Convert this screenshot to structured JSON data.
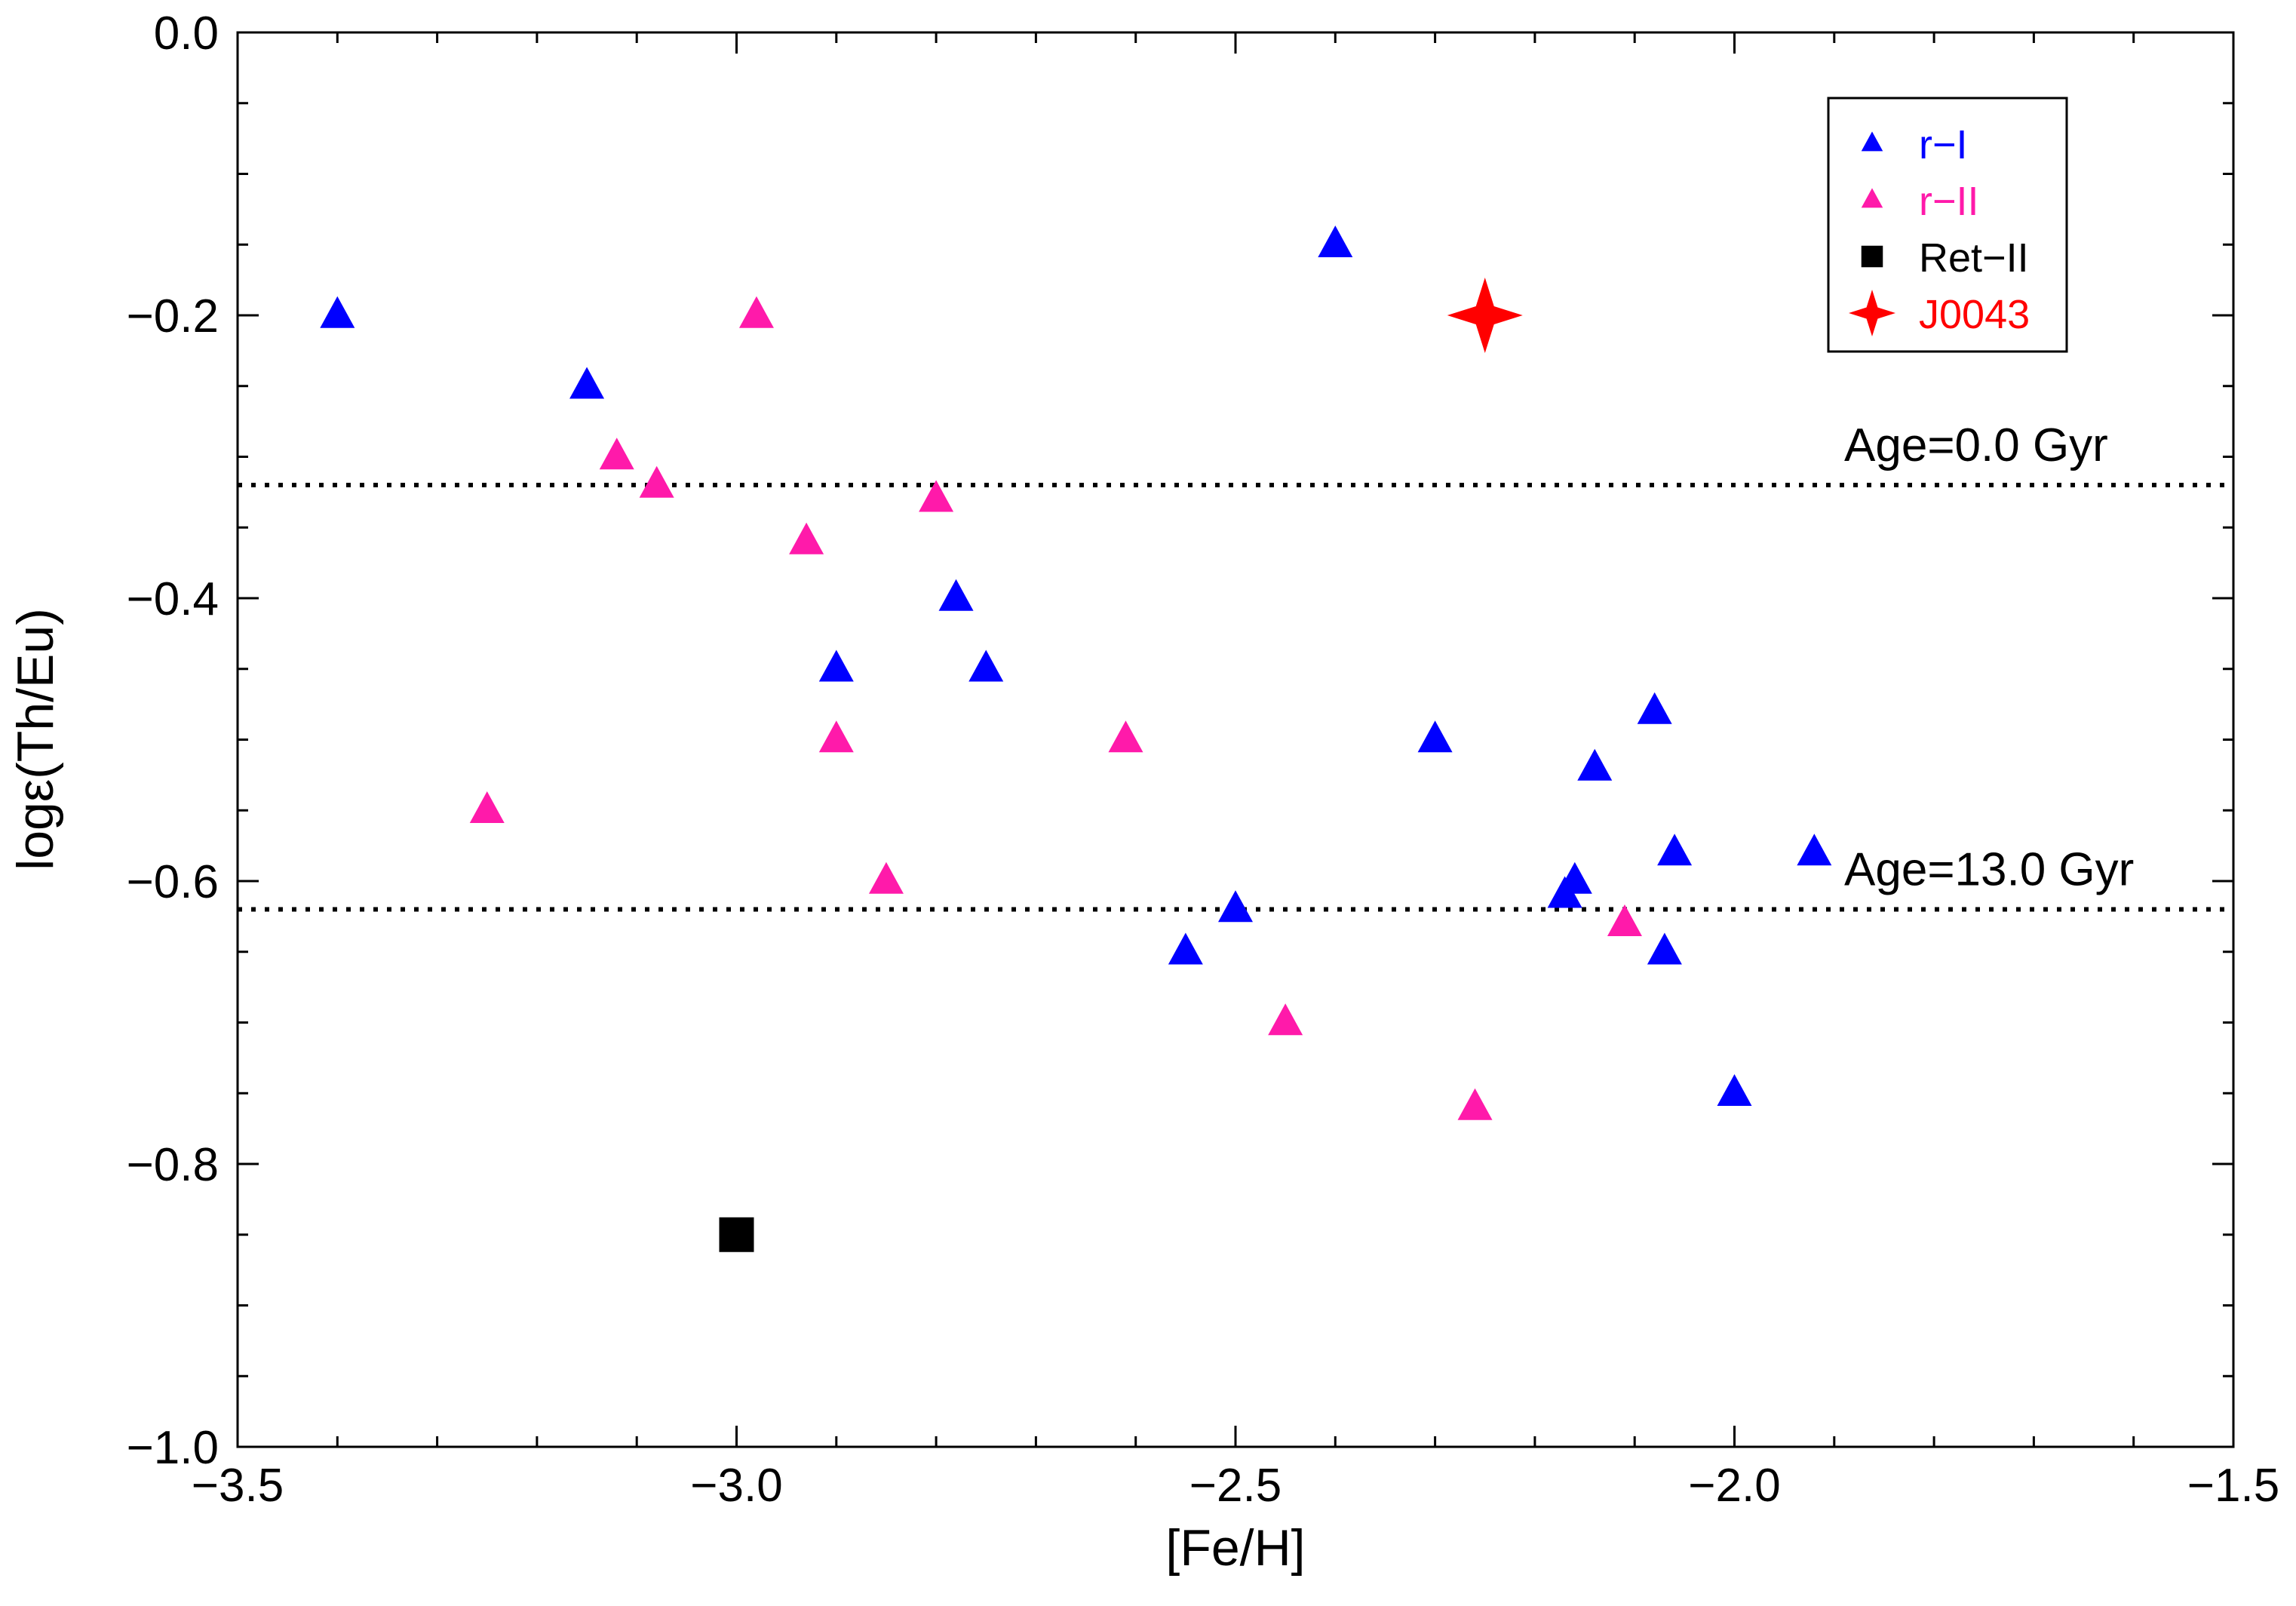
{
  "chart_data": {
    "type": "scatter",
    "title": "",
    "xlabel": "[Fe/H]",
    "ylabel": "logε(Th/Eu)",
    "xlim": [
      -3.5,
      -1.5
    ],
    "ylim": [
      -1.0,
      0.0
    ],
    "x_ticks": [
      -3.5,
      -3.0,
      -2.5,
      -2.0,
      -1.5
    ],
    "x_tick_labels": [
      "−3.5",
      "−3.0",
      "−2.5",
      "−2.0",
      "−1.5"
    ],
    "y_ticks": [
      0.0,
      -0.2,
      -0.4,
      -0.6,
      -0.8,
      -1.0
    ],
    "y_tick_labels": [
      "0.0",
      "−0.2",
      "−0.4",
      "−0.6",
      "−0.8",
      "−1.0"
    ],
    "x_minor_step": 0.1,
    "y_minor_step": 0.05,
    "grid": false,
    "legend_position": "top-right",
    "series": [
      {
        "name": "r−I",
        "marker": "triangle",
        "color": "#0000ff",
        "x": [
          -3.4,
          -3.15,
          -2.9,
          -2.78,
          -2.75,
          -2.5,
          -2.55,
          -2.4,
          -2.3,
          -2.17,
          -2.16,
          -2.14,
          -2.08,
          -2.06,
          -2.07,
          -2.0,
          -1.92
        ],
        "y": [
          -0.2,
          -0.25,
          -0.45,
          -0.4,
          -0.45,
          -0.62,
          -0.65,
          -0.15,
          -0.5,
          -0.61,
          -0.6,
          -0.52,
          -0.48,
          -0.58,
          -0.65,
          -0.75,
          -0.58
        ]
      },
      {
        "name": "r−II",
        "marker": "triangle",
        "color": "#ff1aaa",
        "x": [
          -3.25,
          -3.12,
          -3.08,
          -2.98,
          -2.93,
          -2.9,
          -2.85,
          -2.8,
          -2.61,
          -2.45,
          -2.26,
          -2.11
        ],
        "y": [
          -0.55,
          -0.3,
          -0.32,
          -0.2,
          -0.36,
          -0.5,
          -0.6,
          -0.33,
          -0.5,
          -0.7,
          -0.76,
          -0.63
        ]
      },
      {
        "name": "Ret−II",
        "marker": "square",
        "color": "#000000",
        "x": [
          -3.0
        ],
        "y": [
          -0.85
        ]
      },
      {
        "name": "J0043",
        "marker": "star4",
        "color": "#ff0000",
        "x": [
          -2.25
        ],
        "y": [
          -0.2
        ]
      }
    ],
    "reference_lines": [
      {
        "label": "Age=0.0 Gyr",
        "y": -0.32,
        "style": "dotted",
        "color": "#000000"
      },
      {
        "label": "Age=13.0 Gyr",
        "y": -0.62,
        "style": "dotted",
        "color": "#000000"
      }
    ]
  }
}
